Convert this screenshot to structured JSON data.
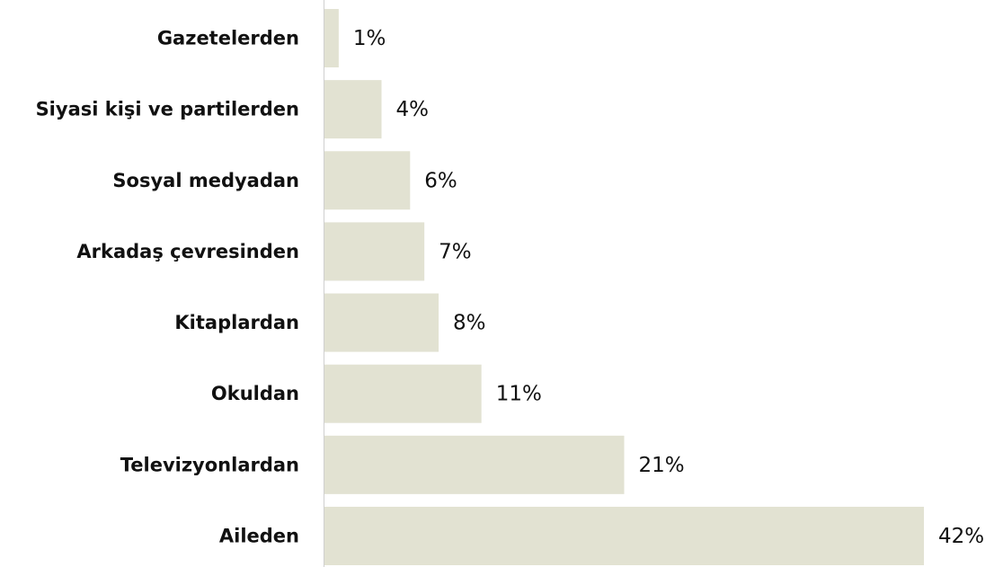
{
  "chart_data": {
    "type": "barh",
    "categories": [
      "Gazetelerden",
      "Siyasi kişi ve partilerden",
      "Sosyal medyadan",
      "Arkadaş çevresinden",
      "Kitaplardan",
      "Okuldan",
      "Televizyonlardan",
      "Aileden"
    ],
    "values": [
      1,
      4,
      6,
      7,
      8,
      11,
      21,
      42
    ],
    "value_labels": [
      "1%",
      "4%",
      "6%",
      "7%",
      "8%",
      "11%",
      "21%",
      "42%"
    ],
    "color": "#e2e2d2"
  }
}
